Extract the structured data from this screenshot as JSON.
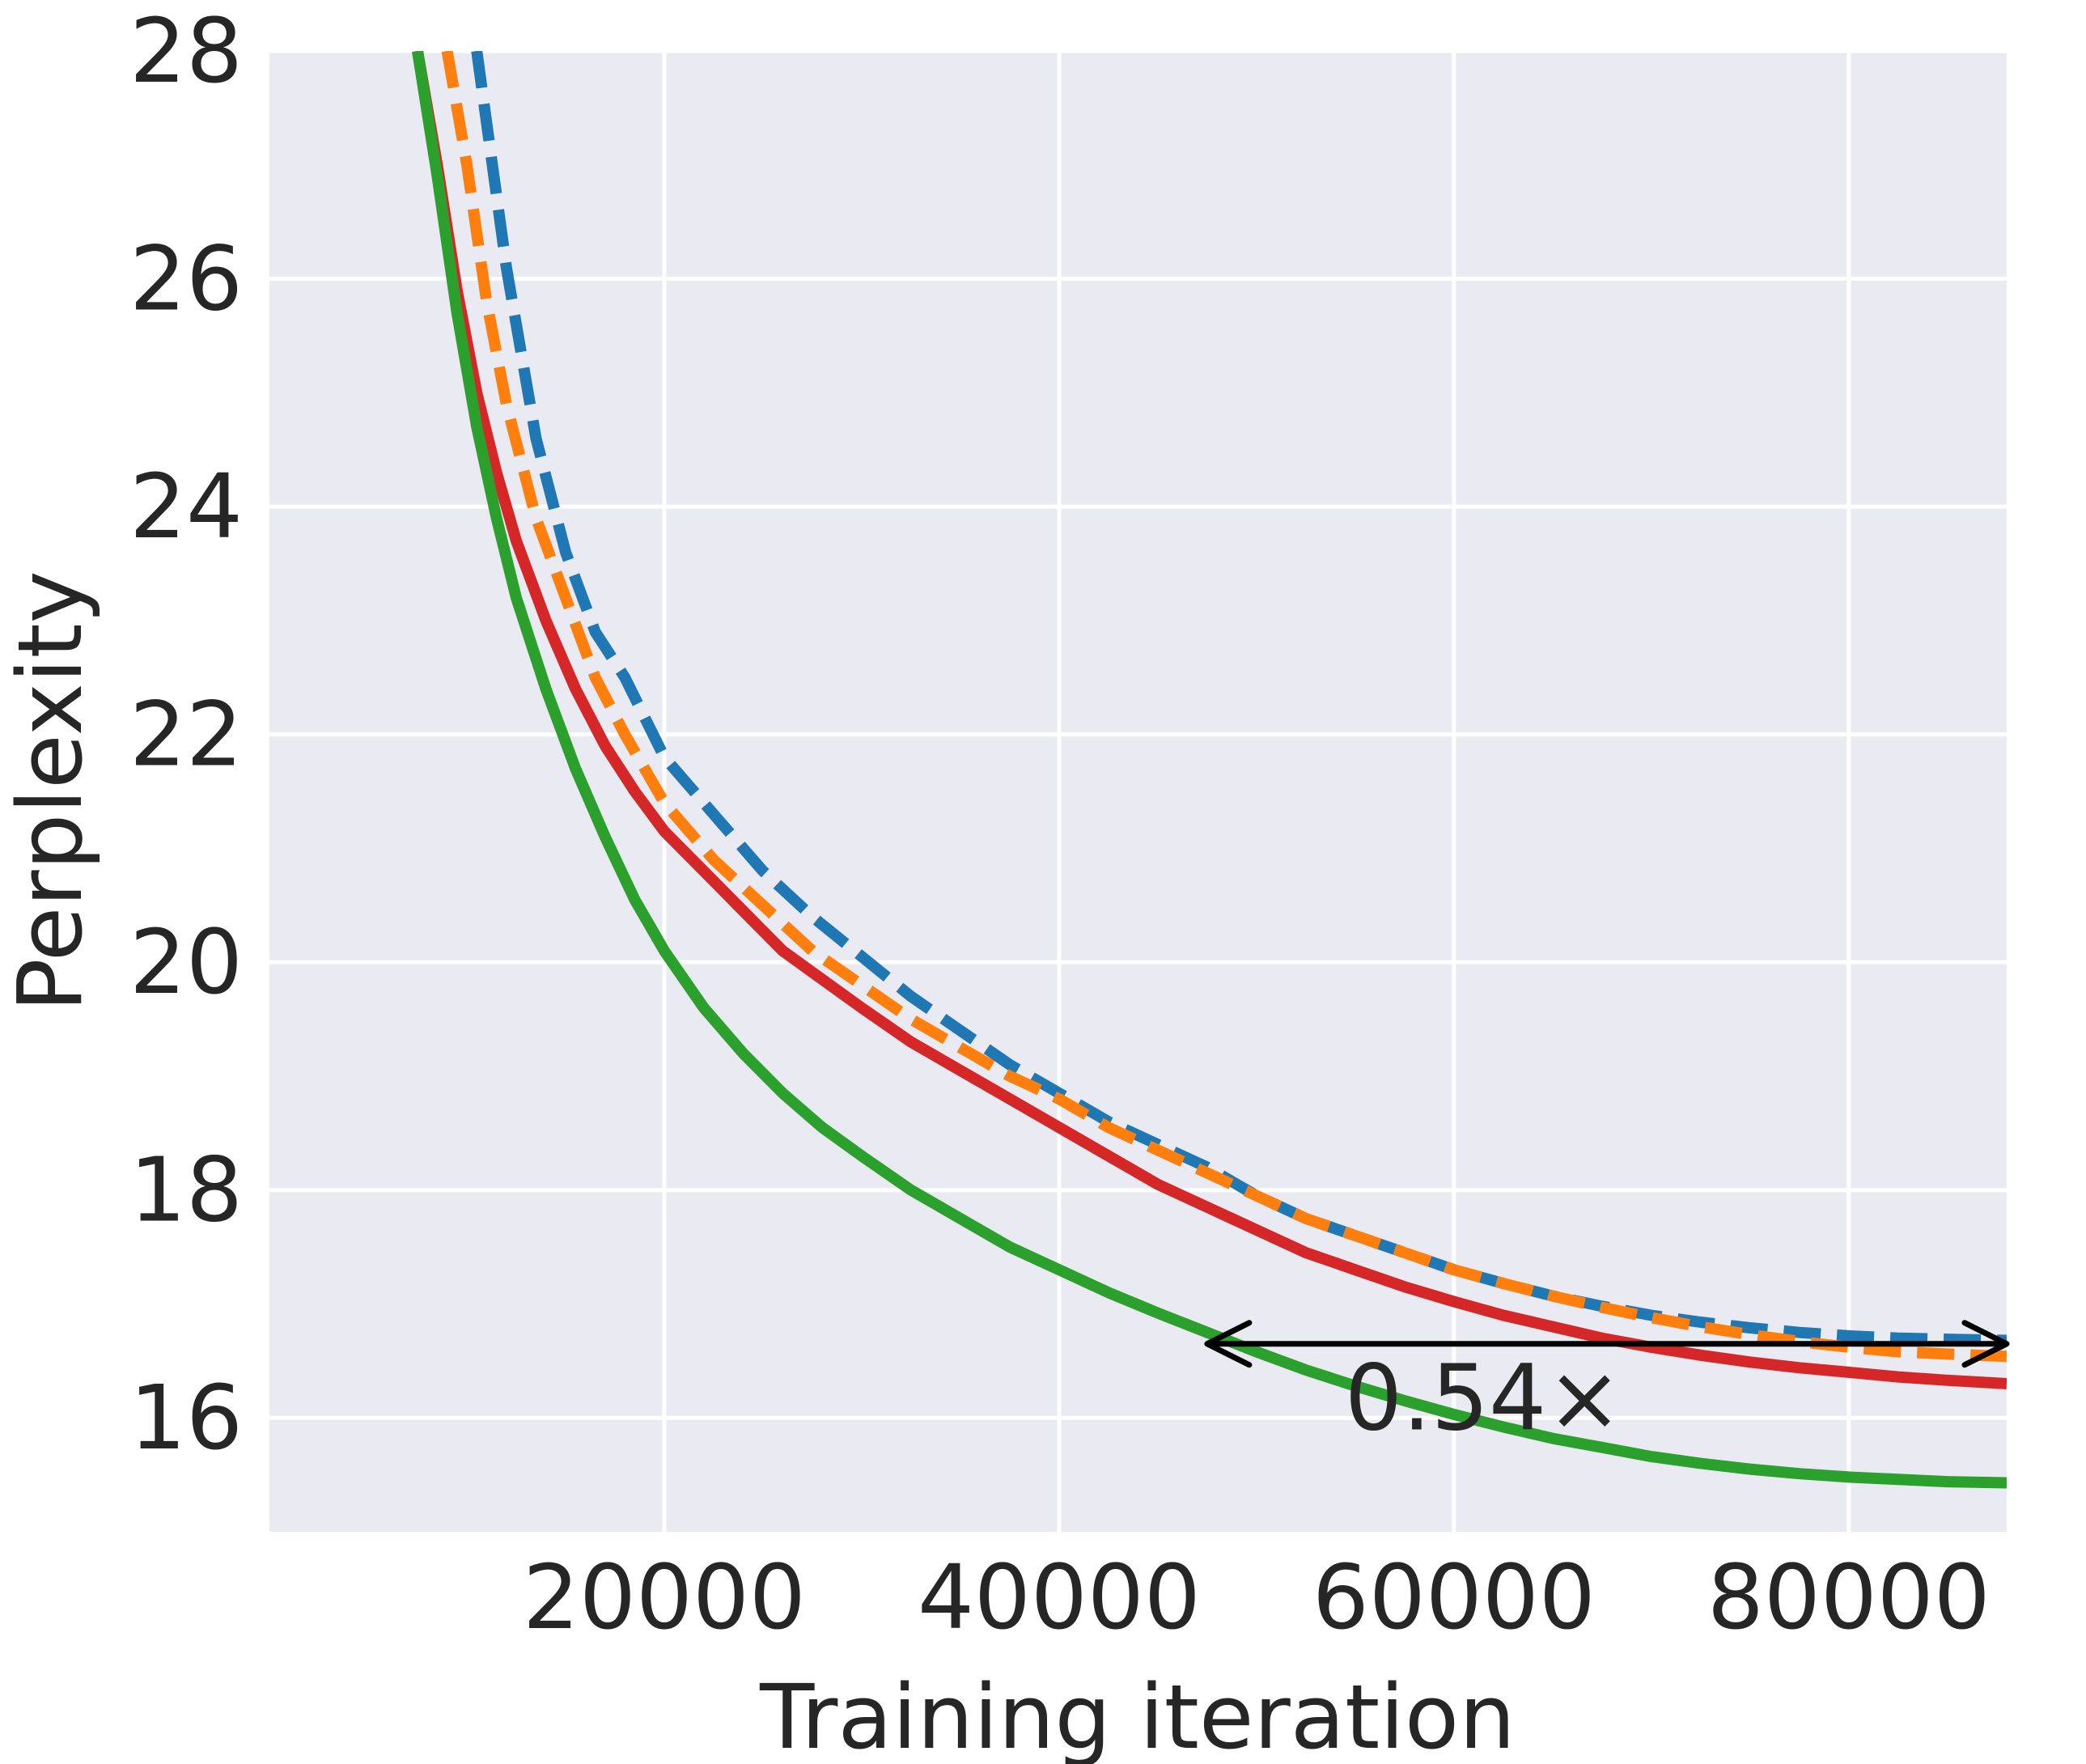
{
  "chart_data": {
    "type": "line",
    "title": "",
    "xlabel": "Training iteration",
    "ylabel": "Perplexity",
    "xlim": [
      0,
      88000
    ],
    "ylim": [
      15.0,
      28.0
    ],
    "xticks": [
      20000,
      40000,
      60000,
      80000
    ],
    "yticks": [
      16,
      18,
      20,
      22,
      24,
      26,
      28
    ],
    "grid": true,
    "background": "#EAEAF2",
    "series": [
      {
        "color": "#1F77B4",
        "style": "dashed",
        "x": [
          10500,
          12000,
          13500,
          15000,
          16500,
          18000,
          20000,
          22500,
          25000,
          27500,
          30000,
          32500,
          35000,
          37500,
          40000,
          42500,
          45000,
          47500,
          50000,
          52500,
          55000,
          57500,
          60000,
          62500,
          65000,
          67500,
          70000,
          72500,
          75000,
          77500,
          80000,
          82500,
          85000,
          88000
        ],
        "y": [
          28.0,
          26.1,
          24.6,
          23.6,
          22.9,
          22.5,
          21.8,
          21.3,
          20.8,
          20.4,
          20.05,
          19.7,
          19.4,
          19.1,
          18.85,
          18.6,
          18.4,
          18.2,
          17.95,
          17.75,
          17.6,
          17.45,
          17.3,
          17.18,
          17.07,
          16.98,
          16.9,
          16.84,
          16.79,
          16.75,
          16.72,
          16.7,
          16.69,
          16.68
        ]
      },
      {
        "color": "#FF7F0E",
        "style": "dashed",
        "x": [
          9000,
          10000,
          11000,
          12000,
          13500,
          15000,
          16500,
          18000,
          20000,
          22500,
          25000,
          27500,
          30000,
          32500,
          35000,
          37500,
          40000,
          42500,
          45000,
          47500,
          50000,
          52500,
          55000,
          57500,
          60000,
          62500,
          65000,
          67500,
          70000,
          72500,
          75000,
          77500,
          80000,
          82500,
          85000,
          88000
        ],
        "y": [
          28.0,
          27.0,
          25.8,
          24.9,
          23.9,
          23.2,
          22.5,
          22.0,
          21.4,
          20.9,
          20.5,
          20.1,
          19.8,
          19.5,
          19.25,
          19.0,
          18.8,
          18.55,
          18.35,
          18.15,
          17.95,
          17.75,
          17.6,
          17.45,
          17.3,
          17.18,
          17.07,
          16.97,
          16.88,
          16.8,
          16.73,
          16.67,
          16.62,
          16.58,
          16.56,
          16.54
        ]
      },
      {
        "color": "#D62728",
        "style": "solid",
        "x": [
          7500,
          8500,
          9500,
          10500,
          11500,
          12500,
          14000,
          15500,
          17000,
          18500,
          20000,
          22000,
          24000,
          26000,
          28000,
          30000,
          32500,
          35000,
          37500,
          40000,
          42500,
          45000,
          47500,
          50000,
          52500,
          55000,
          57500,
          60000,
          62500,
          65000,
          67500,
          70000,
          72500,
          75000,
          77500,
          80000,
          82500,
          85000,
          88000
        ],
        "y": [
          28.0,
          27.0,
          25.9,
          25.0,
          24.3,
          23.7,
          23.0,
          22.4,
          21.9,
          21.5,
          21.15,
          20.8,
          20.45,
          20.1,
          19.85,
          19.6,
          19.3,
          19.05,
          18.8,
          18.55,
          18.3,
          18.05,
          17.85,
          17.65,
          17.45,
          17.3,
          17.15,
          17.02,
          16.9,
          16.8,
          16.7,
          16.62,
          16.55,
          16.49,
          16.44,
          16.4,
          16.36,
          16.33,
          16.3
        ]
      },
      {
        "color": "#2CA02C",
        "style": "solid",
        "x": [
          7500,
          8500,
          9500,
          10500,
          11500,
          12500,
          14000,
          15500,
          17000,
          18500,
          20000,
          22000,
          24000,
          26000,
          28000,
          30000,
          32500,
          35000,
          37500,
          40000,
          42500,
          45000,
          47500,
          50000,
          52500,
          55000,
          57500,
          60000,
          62500,
          65000,
          67500,
          70000,
          72500,
          75000,
          77500,
          80000,
          82500,
          85000,
          88000
        ],
        "y": [
          28.0,
          26.9,
          25.7,
          24.7,
          23.9,
          23.2,
          22.4,
          21.7,
          21.1,
          20.55,
          20.1,
          19.6,
          19.2,
          18.85,
          18.55,
          18.3,
          18.0,
          17.75,
          17.5,
          17.3,
          17.1,
          16.92,
          16.75,
          16.58,
          16.42,
          16.28,
          16.15,
          16.03,
          15.92,
          15.82,
          15.74,
          15.66,
          15.6,
          15.55,
          15.51,
          15.48,
          15.46,
          15.44,
          15.43
        ]
      }
    ],
    "annotation": {
      "text": "0.54×",
      "arrow_x": [
        47500,
        88000
      ],
      "arrow_y": 16.65,
      "text_x": 61500,
      "text_y": 15.9,
      "color": "#000000"
    }
  }
}
